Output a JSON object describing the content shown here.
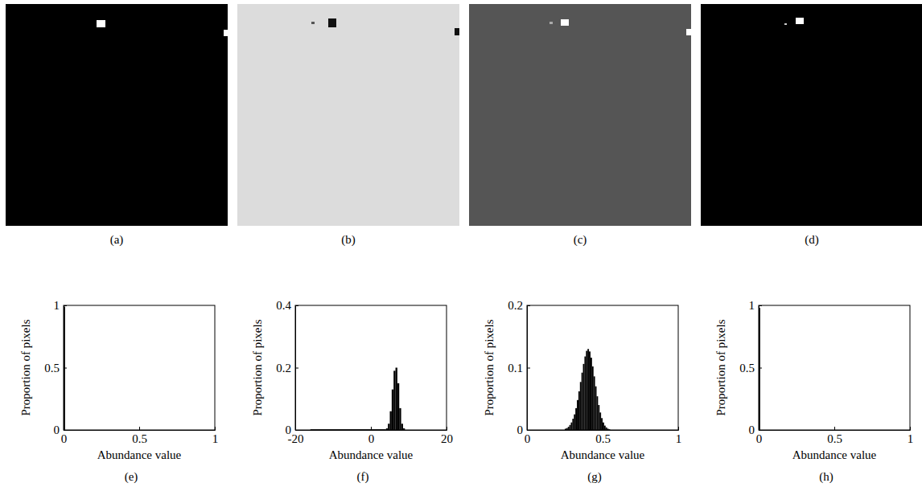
{
  "chart_data": [
    {
      "type": "image",
      "title": "(a)",
      "color": "#000000"
    },
    {
      "type": "image",
      "title": "(b)",
      "color": "#dcdcdc"
    },
    {
      "type": "image",
      "title": "(c)",
      "color": "#555555"
    },
    {
      "type": "image",
      "title": "(d)",
      "color": "#000000"
    },
    {
      "type": "histogram",
      "title": "(e)",
      "x_label": "Abundance value",
      "y_label": "Proportion of pixels",
      "bins": [
        0,
        0.01
      ],
      "values": [
        0.99
      ],
      "color": "#000000",
      "xlim": [
        0,
        1
      ],
      "ylim": [
        0,
        1
      ],
      "xticks": [
        0,
        0.5,
        1
      ],
      "yticks": [
        0,
        0.5,
        1
      ]
    },
    {
      "type": "histogram",
      "title": "(f)",
      "x_label": "Abundance value",
      "y_label": "Proportion of pixels",
      "bins": [
        -16,
        4,
        4.5,
        5,
        5.5,
        6,
        6.5,
        7,
        7.5,
        8,
        8.5,
        9
      ],
      "values": [
        0.002,
        0.005,
        0.02,
        0.06,
        0.13,
        0.19,
        0.2,
        0.15,
        0.07,
        0.02,
        0.005
      ],
      "color": "#000000",
      "xlim": [
        -20,
        20
      ],
      "ylim": [
        0,
        0.4
      ],
      "xticks": [
        -20,
        0,
        20
      ],
      "yticks": [
        0,
        0.2,
        0.4
      ]
    },
    {
      "type": "histogram",
      "title": "(g)",
      "x_label": "Abundance value",
      "y_label": "Proportion of pixels",
      "bins": [
        0.25,
        0.26,
        0.27,
        0.28,
        0.29,
        0.3,
        0.31,
        0.32,
        0.33,
        0.34,
        0.35,
        0.36,
        0.37,
        0.38,
        0.39,
        0.4,
        0.41,
        0.42,
        0.43,
        0.44,
        0.45,
        0.46,
        0.47,
        0.48,
        0.49,
        0.5,
        0.51,
        0.52,
        0.53,
        0.54,
        0.55
      ],
      "values": [
        0.002,
        0.003,
        0.005,
        0.008,
        0.012,
        0.018,
        0.025,
        0.035,
        0.048,
        0.062,
        0.077,
        0.092,
        0.106,
        0.118,
        0.127,
        0.13,
        0.126,
        0.116,
        0.102,
        0.086,
        0.07,
        0.054,
        0.04,
        0.028,
        0.019,
        0.012,
        0.007,
        0.004,
        0.002,
        0.001
      ],
      "color": "#000000",
      "xlim": [
        0,
        1
      ],
      "ylim": [
        0,
        0.2
      ],
      "xticks": [
        0,
        0.5,
        1
      ],
      "yticks": [
        0,
        0.1,
        0.2
      ]
    },
    {
      "type": "histogram",
      "title": "(h)",
      "x_label": "Abundance value",
      "y_label": "Proportion of pixels",
      "bins": [
        0,
        0.01
      ],
      "values": [
        0.98
      ],
      "color": "#000000",
      "xlim": [
        0,
        1
      ],
      "ylim": [
        0,
        1
      ],
      "xticks": [
        0,
        0.5,
        1
      ],
      "yticks": [
        0,
        0.5,
        1
      ]
    }
  ]
}
